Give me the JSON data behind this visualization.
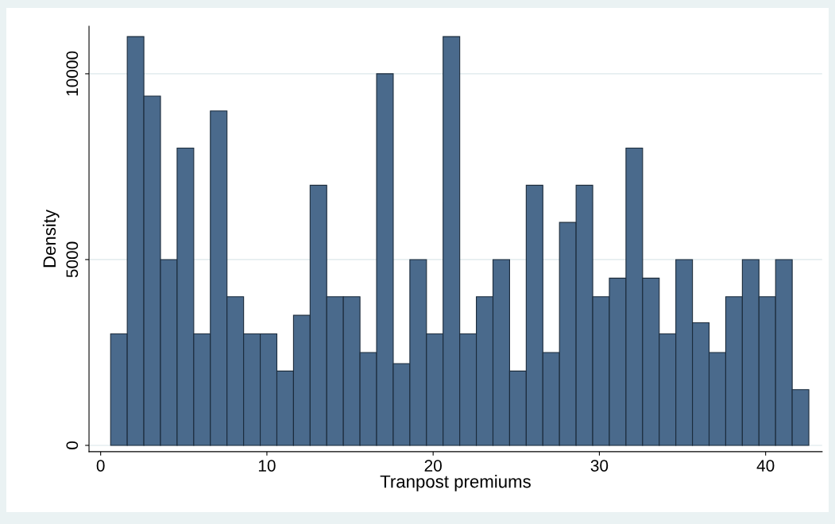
{
  "chart_data": {
    "type": "histogram",
    "xlabel": "Tranpost premiums",
    "ylabel": "Density",
    "bins": [
      0.6,
      1.6,
      2.6,
      3.6,
      4.6,
      5.6,
      6.6,
      7.6,
      8.6,
      9.6,
      10.6,
      11.6,
      12.6,
      13.6,
      14.6,
      15.6,
      16.6,
      17.6,
      18.6,
      19.6,
      20.6,
      21.6,
      22.6,
      23.6,
      24.6,
      25.6,
      26.6,
      27.6,
      28.6,
      29.6,
      30.6,
      31.6,
      32.6,
      33.6,
      34.6,
      35.6,
      36.6,
      37.6,
      38.6,
      39.6,
      40.6,
      41.6,
      42.6
    ],
    "values": [
      3000,
      11000,
      9400,
      5000,
      8000,
      3000,
      9000,
      4000,
      3000,
      3000,
      2000,
      3500,
      7000,
      4000,
      4000,
      2500,
      10000,
      2200,
      5000,
      3000,
      11000,
      3000,
      4000,
      5000,
      2000,
      7000,
      2500,
      6000,
      7000,
      4000,
      4500,
      8000,
      4500,
      3000,
      5000,
      3300,
      2500,
      4000,
      5000,
      4000,
      5000,
      1500
    ],
    "color": "#4a6a8c",
    "xlim": [
      -0.7,
      43.4
    ],
    "ylim": [
      -170,
      11280
    ],
    "xticks": [
      0,
      10,
      20,
      30,
      40
    ],
    "yticks": [
      0,
      5000,
      10000
    ],
    "grid": "y"
  }
}
